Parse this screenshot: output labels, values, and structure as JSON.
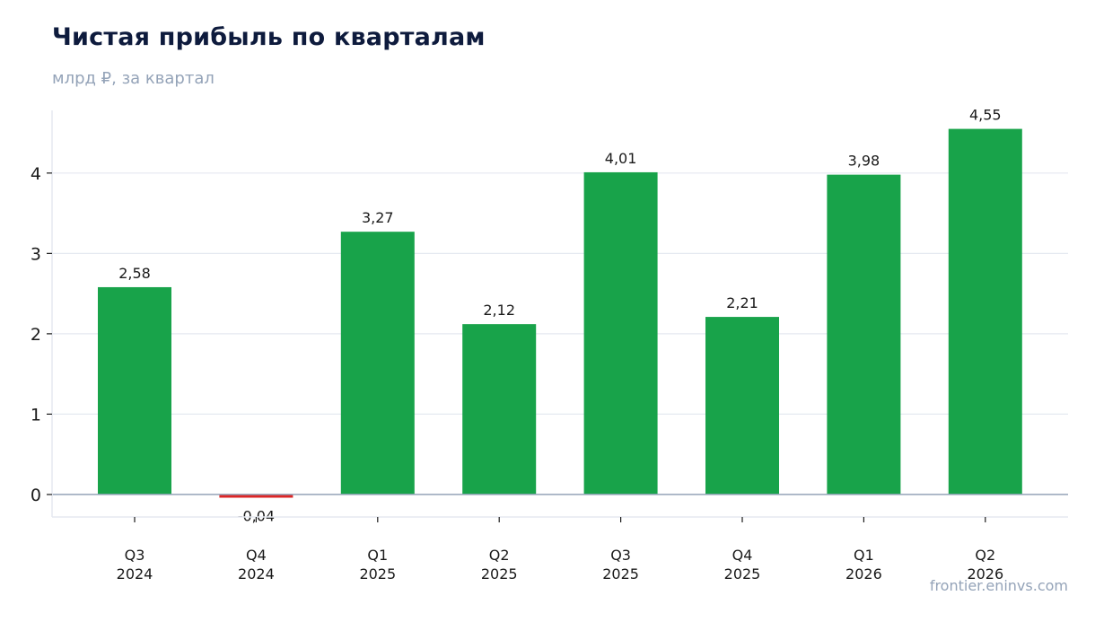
{
  "header": {
    "title": "Чистая прибыль по кварталам",
    "subtitle": "млрд ₽, за квартал"
  },
  "footer": {
    "watermark": "frontier.eninvs.com"
  },
  "chart_data": {
    "type": "bar",
    "title": "Чистая прибыль по кварталам",
    "subtitle": "млрд ₽, за квартал",
    "categories": [
      [
        "Q3",
        "2024"
      ],
      [
        "Q4",
        "2024"
      ],
      [
        "Q1",
        "2025"
      ],
      [
        "Q2",
        "2025"
      ],
      [
        "Q3",
        "2025"
      ],
      [
        "Q4",
        "2025"
      ],
      [
        "Q1",
        "2026"
      ],
      [
        "Q2",
        "2026"
      ]
    ],
    "values": [
      2.58,
      -0.04,
      3.27,
      2.12,
      4.01,
      2.21,
      3.98,
      4.55
    ],
    "value_labels": [
      "2,58",
      "-0,04",
      "3,27",
      "2,12",
      "4,01",
      "2,21",
      "3,98",
      "4,55"
    ],
    "yticks": [
      0,
      1,
      2,
      3,
      4
    ],
    "ylim": [
      -0.28,
      4.78
    ],
    "grid": true,
    "legend": "none",
    "colors": {
      "positive": "#18a34a",
      "negative": "#dc2626",
      "zero_line": "#94a3b8",
      "grid": "#e5e9f0"
    }
  }
}
